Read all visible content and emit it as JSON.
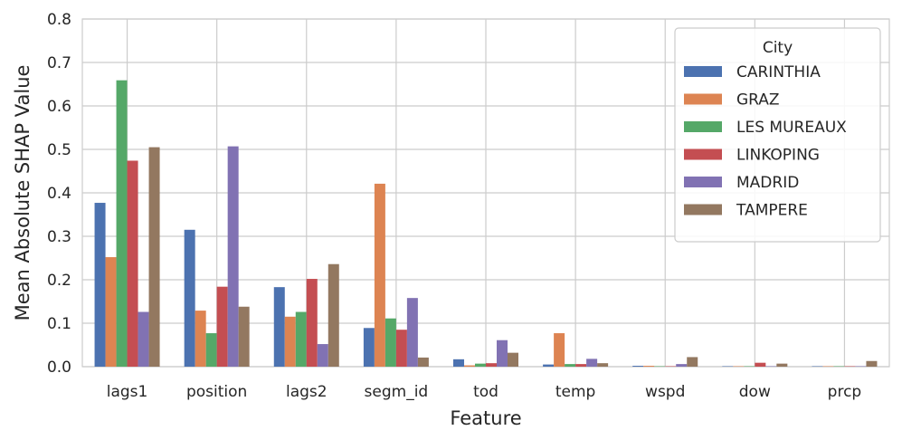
{
  "chart_data": {
    "type": "bar",
    "xlabel": "Feature",
    "ylabel": "Mean Absolute SHAP Value",
    "ylim": [
      0,
      0.8
    ],
    "yticks": [
      "0.0",
      "0.1",
      "0.2",
      "0.3",
      "0.4",
      "0.5",
      "0.6",
      "0.7",
      "0.8"
    ],
    "grid": true,
    "legend_title": "City",
    "legend_position": "top-right",
    "categories": [
      "lags1",
      "position",
      "lags2",
      "segm_id",
      "tod",
      "temp",
      "wspd",
      "dow",
      "prcp"
    ],
    "series": [
      {
        "name": "CARINTHIA",
        "color": "#4c72b0",
        "values": [
          0.377,
          0.315,
          0.183,
          0.089,
          0.017,
          0.005,
          0.002,
          0.001,
          0.001
        ]
      },
      {
        "name": "GRAZ",
        "color": "#dd8452",
        "values": [
          0.252,
          0.129,
          0.115,
          0.421,
          0.003,
          0.077,
          0.002,
          0.001,
          0.001
        ]
      },
      {
        "name": "LES MUREAUX",
        "color": "#55a868",
        "values": [
          0.659,
          0.077,
          0.126,
          0.111,
          0.007,
          0.006,
          0.001,
          0.001,
          0.001
        ]
      },
      {
        "name": "LINKOPING",
        "color": "#c44e52",
        "values": [
          0.474,
          0.184,
          0.202,
          0.085,
          0.008,
          0.006,
          0.001,
          0.009,
          0.001
        ]
      },
      {
        "name": "MADRID",
        "color": "#8172b3",
        "values": [
          0.126,
          0.507,
          0.052,
          0.158,
          0.061,
          0.018,
          0.006,
          0.001,
          0.001
        ]
      },
      {
        "name": "TAMPERE",
        "color": "#937860",
        "values": [
          0.505,
          0.138,
          0.236,
          0.021,
          0.032,
          0.008,
          0.022,
          0.007,
          0.013
        ]
      }
    ]
  }
}
